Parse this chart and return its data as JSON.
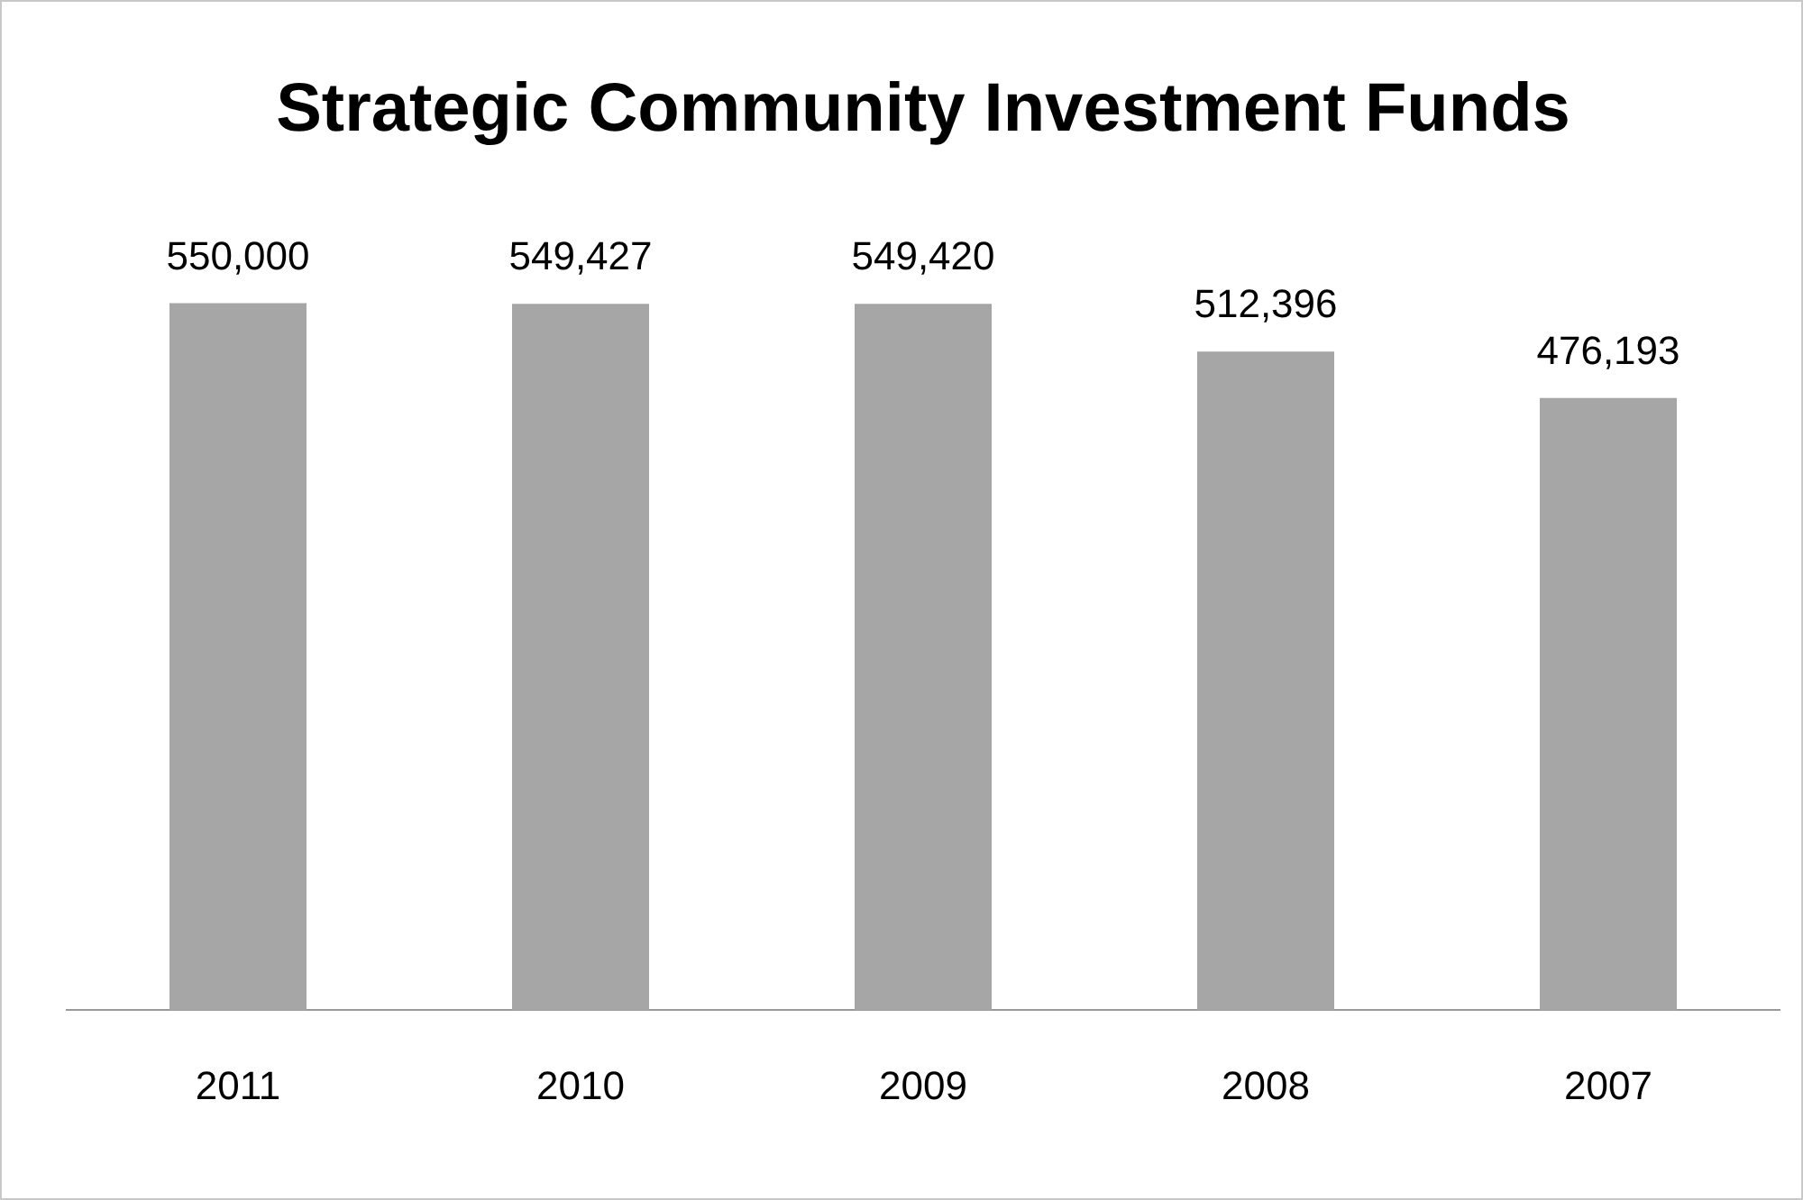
{
  "chart_data": {
    "type": "bar",
    "title": "Strategic Community Investment Funds",
    "categories": [
      "2011",
      "2010",
      "2009",
      "2008",
      "2007"
    ],
    "values": [
      550000,
      549427,
      549420,
      512396,
      476193
    ],
    "color": "#a6a6a6",
    "value_labels": [
      "550,000",
      "549,427",
      "549,420",
      "512,396",
      "476,193"
    ],
    "tick_labels": "x",
    "grid": false,
    "legend": false
  }
}
